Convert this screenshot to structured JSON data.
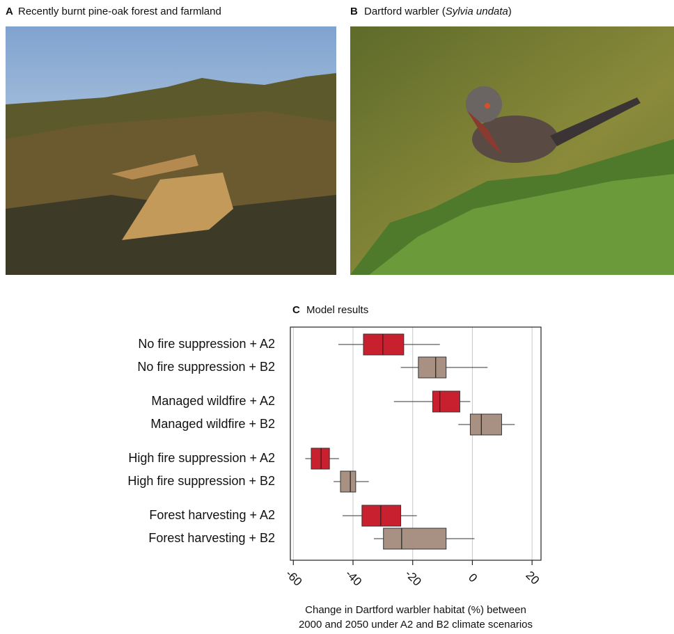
{
  "panels": [
    {
      "label": "A",
      "title": "Recently burnt pine-oak forest and farmland"
    },
    {
      "label": "B",
      "title_parts": [
        "Dartford warbler (",
        "Sylvia undata",
        ")"
      ]
    }
  ],
  "chart_data": {
    "type": "box",
    "label": "C",
    "title": "Model results",
    "categories": [
      "No fire suppression + A2",
      "No fire suppression + B2",
      "Managed wildfire + A2",
      "Managed wildfire + B2",
      "High fire suppression + A2",
      "High fire suppression + B2",
      "Forest harvesting + A2",
      "Forest harvesting + B2"
    ],
    "low": [
      -44.9,
      -24,
      -26.3,
      -4.7,
      -56,
      -46.5,
      -43.5,
      -33
    ],
    "q1": [
      -36.5,
      -18.1,
      -13.3,
      -0.7,
      -54,
      -44.2,
      -37,
      -29.8
    ],
    "median": [
      -30,
      -12.3,
      -10.9,
      3,
      -50.7,
      -40.9,
      -30.7,
      -23.7
    ],
    "q3": [
      -23,
      -8.8,
      -4.2,
      9.8,
      -47.9,
      -39.1,
      -24,
      -8.8
    ],
    "high": [
      -10.9,
      5.1,
      -0.7,
      14.2,
      -44.7,
      -34.7,
      -18.6,
      0.7
    ],
    "colors": [
      "#c8202f",
      "#a89083",
      "#c8202f",
      "#a89083",
      "#c8202f",
      "#a89083",
      "#c8202f",
      "#a89083"
    ],
    "xlim": [
      -61,
      23
    ],
    "xticks": [
      -60,
      -40,
      -20,
      0,
      20
    ],
    "grid": true,
    "xlabel": [
      "Change in Dartford warbler habitat (%) between",
      "2000 and 2050 under A2 and B2 climate scenarios"
    ]
  }
}
